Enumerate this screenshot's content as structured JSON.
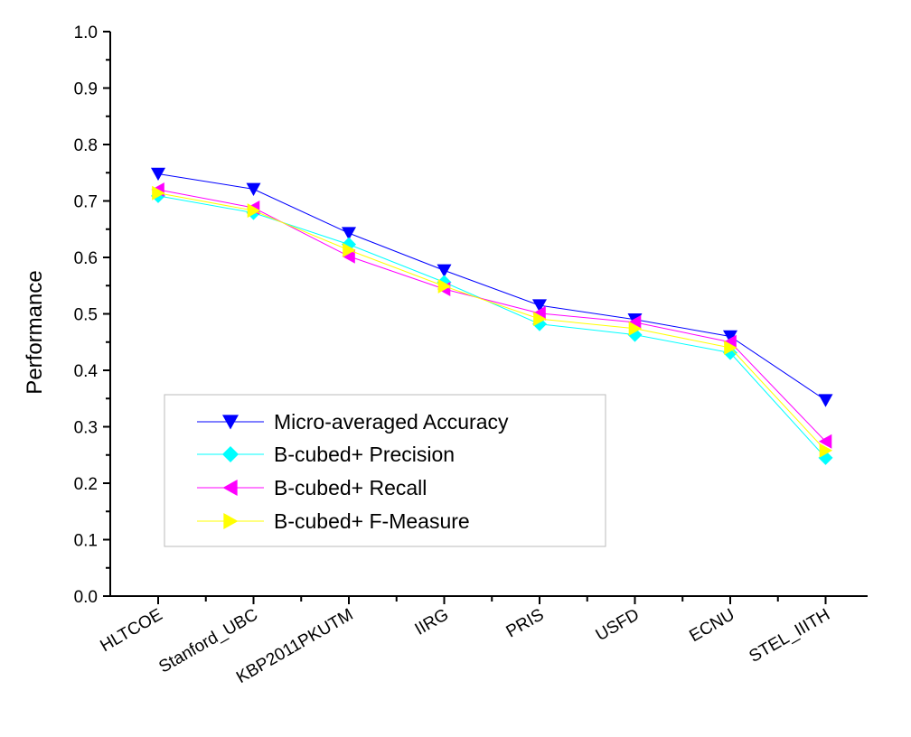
{
  "chart_data": {
    "type": "line",
    "title": "",
    "xlabel": "",
    "ylabel": "Performance",
    "categories": [
      "HLTCOE",
      "Stanford_UBC",
      "KBP2011PKUTM",
      "IIRG",
      "PRIS",
      "USFD",
      "ECNU",
      "STEL_IIITH"
    ],
    "ylim": [
      0.0,
      1.0
    ],
    "y_ticks": [
      "0.0",
      "0.1",
      "0.2",
      "0.3",
      "0.4",
      "0.5",
      "0.6",
      "0.7",
      "0.8",
      "0.9",
      "1.0"
    ],
    "grid": false,
    "legend_position": "lower-left",
    "series": [
      {
        "name": "Micro-averaged Accuracy",
        "color": "#0000ff",
        "marker": "triangle-down",
        "values": [
          0.748,
          0.721,
          0.643,
          0.577,
          0.515,
          0.49,
          0.46,
          0.347
        ]
      },
      {
        "name": "B-cubed+ Precision",
        "color": "#00ffff",
        "marker": "diamond",
        "values": [
          0.709,
          0.679,
          0.623,
          0.556,
          0.482,
          0.463,
          0.431,
          0.245
        ]
      },
      {
        "name": "B-cubed+ Recall",
        "color": "#ff00ff",
        "marker": "triangle-left",
        "values": [
          0.72,
          0.688,
          0.602,
          0.544,
          0.501,
          0.485,
          0.45,
          0.274
        ]
      },
      {
        "name": "B-cubed+ F-Measure",
        "color": "#ffff00",
        "marker": "triangle-right",
        "values": [
          0.714,
          0.683,
          0.613,
          0.549,
          0.491,
          0.474,
          0.44,
          0.258
        ]
      }
    ]
  }
}
